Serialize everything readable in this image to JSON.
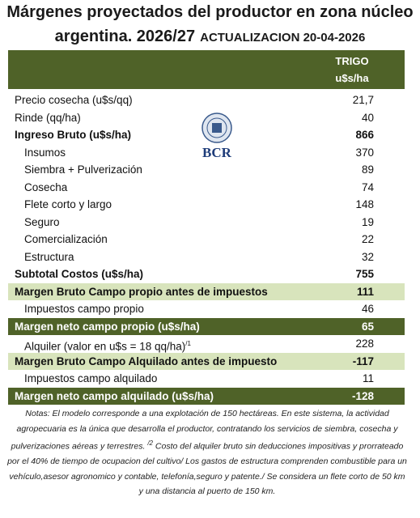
{
  "header": {
    "title_line1": "Márgenes  proyectados del productor en zona núcleo",
    "title_line2": "argentina. 2026/27",
    "update": "ACTUALIZACION 20-04-2026"
  },
  "table": {
    "columns": [
      "TRIGO",
      "u$s/ha"
    ],
    "rows": [
      {
        "label": "Precio cosecha (u$s/qq)",
        "value": "21,7",
        "style": "normal"
      },
      {
        "label": "Rinde (qq/ha)",
        "value": "40",
        "style": "normal"
      },
      {
        "label": "Ingreso Bruto (u$s/ha)",
        "value": "866",
        "style": "bold"
      },
      {
        "label": "Insumos",
        "value": "370",
        "style": "indent"
      },
      {
        "label": "Siembra + Pulverización",
        "value": "89",
        "style": "indent"
      },
      {
        "label": "Cosecha",
        "value": "74",
        "style": "indent"
      },
      {
        "label": "Flete corto y largo",
        "value": "148",
        "style": "indent"
      },
      {
        "label": "Seguro",
        "value": "19",
        "style": "indent"
      },
      {
        "label": "Comercialización",
        "value": "22",
        "style": "indent"
      },
      {
        "label": "Estructura",
        "value": "32",
        "style": "indent"
      },
      {
        "label": "Subtotal Costos (u$s/ha)",
        "value": "755",
        "style": "bold"
      },
      {
        "label": "Margen Bruto Campo propio antes de impuestos",
        "value": "111",
        "style": "light"
      },
      {
        "label": "Impuestos  campo propio",
        "value": "46",
        "style": "indent"
      },
      {
        "label": "Margen neto campo propio (u$s/ha)",
        "value": "65",
        "style": "dark"
      },
      {
        "label": "Alquiler (valor en u$s = 18 qq/ha)",
        "note": "/1",
        "value": "228",
        "style": "indent"
      },
      {
        "label": "Margen Bruto Campo Alquilado antes de impuesto",
        "value": "-117",
        "style": "light"
      },
      {
        "label": "Impuestos campo alquilado",
        "value": "11",
        "style": "indent"
      },
      {
        "label": "Margen neto campo alquilado (u$s/ha)",
        "value": "-128",
        "style": "dark"
      }
    ]
  },
  "logo": {
    "text": "BCR"
  },
  "notes": {
    "part1": "Notas: El modelo corresponde a una explotación de 150 hectáreas. En este sistema, la actividad agropecuaria es la única que desarrolla el productor, contratando los servicios de siembra, cosecha y pulverizaciones aéreas y terrestres.",
    "sup": "/2",
    "part2": "Costo del alquiler bruto sin deducciones impositivas y prorrateado por el 40% de tiempo de ocupacion del cultivo/ Los gastos de estructura comprenden combustible para un vehículo,asesor agronomico y contable, telefonía,seguro y patente./ Se considera un flete corto de 50 km y una distancia al puerto de 150 km."
  }
}
